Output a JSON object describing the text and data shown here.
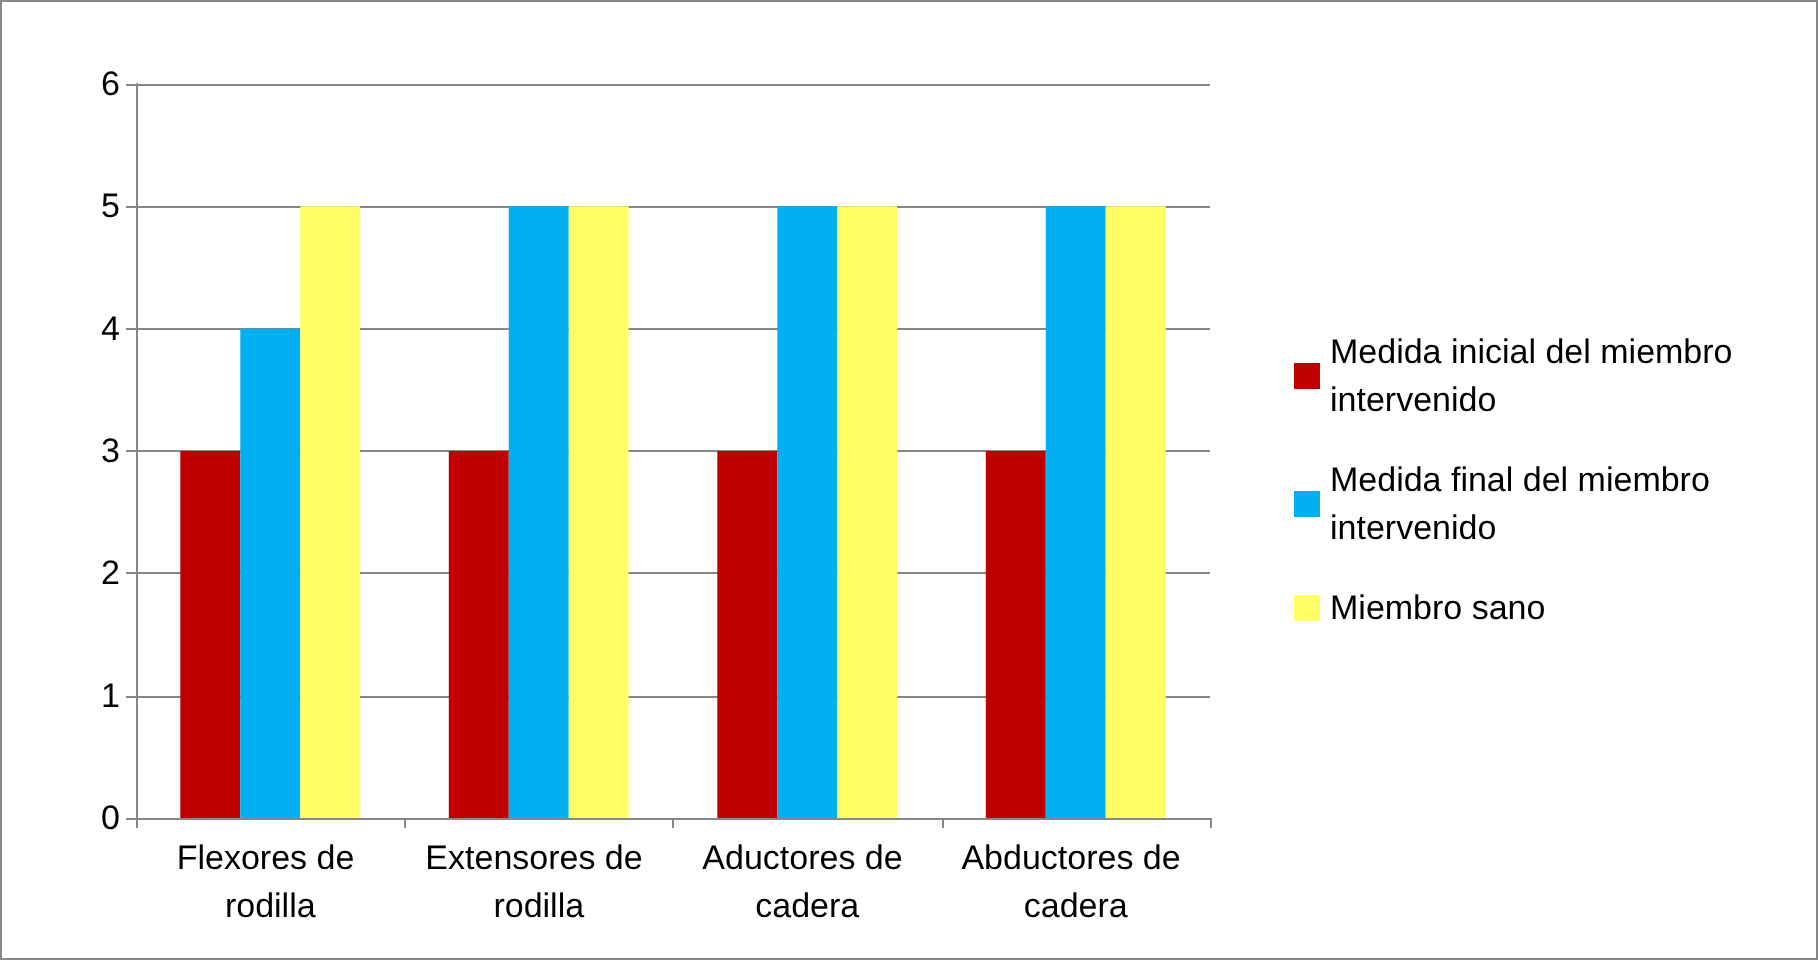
{
  "chart_data": {
    "type": "bar",
    "categories": [
      "Flexores de rodilla",
      "Extensores de rodilla",
      "Aductores de cadera",
      "Abductores de cadera"
    ],
    "series": [
      {
        "name": "Medida inicial del miembro intervenido",
        "color": "#c00000",
        "values": [
          3,
          3,
          3,
          3
        ]
      },
      {
        "name": "Medida final del miembro intervenido",
        "color": "#00b0f0",
        "values": [
          4,
          5,
          5,
          5
        ]
      },
      {
        "name": "Miembro sano",
        "color": "#ffff66",
        "values": [
          5,
          5,
          5,
          5
        ]
      }
    ],
    "ylim": [
      0,
      6
    ],
    "yticks": [
      0,
      1,
      2,
      3,
      4,
      5,
      6
    ],
    "grid": "y",
    "legend": "right"
  }
}
